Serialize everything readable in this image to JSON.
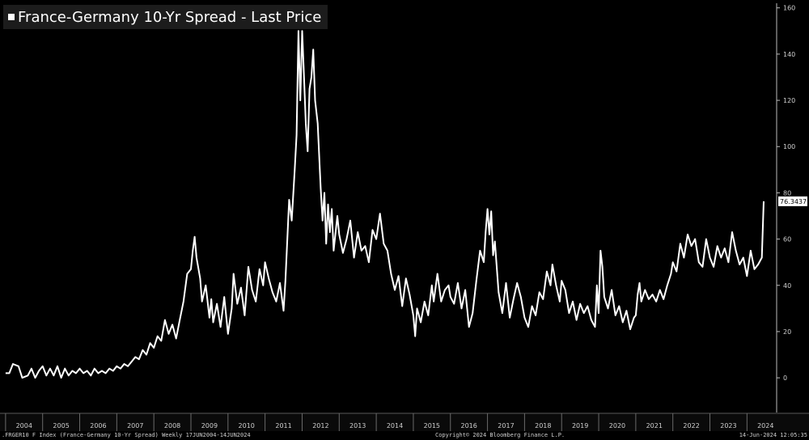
{
  "chart_data": {
    "type": "line",
    "title": "France-Germany 10-Yr Spread - Last Price",
    "series": [
      {
        "values": [
          [
            2004.0,
            2
          ],
          [
            2004.1,
            2
          ],
          [
            2004.2,
            6
          ],
          [
            2004.35,
            5
          ],
          [
            2004.45,
            0
          ],
          [
            2004.6,
            1
          ],
          [
            2004.7,
            4
          ],
          [
            2004.8,
            0
          ],
          [
            2004.9,
            3
          ],
          [
            2005.0,
            5
          ],
          [
            2005.1,
            1
          ],
          [
            2005.2,
            4
          ],
          [
            2005.3,
            1
          ],
          [
            2005.4,
            5
          ],
          [
            2005.5,
            0
          ],
          [
            2005.6,
            4
          ],
          [
            2005.7,
            1
          ],
          [
            2005.8,
            3
          ],
          [
            2005.9,
            2
          ],
          [
            2006.0,
            4
          ],
          [
            2006.1,
            2
          ],
          [
            2006.2,
            3
          ],
          [
            2006.3,
            1
          ],
          [
            2006.4,
            4
          ],
          [
            2006.5,
            2
          ],
          [
            2006.6,
            3
          ],
          [
            2006.7,
            2
          ],
          [
            2006.8,
            4
          ],
          [
            2006.9,
            3
          ],
          [
            2007.0,
            5
          ],
          [
            2007.1,
            4
          ],
          [
            2007.2,
            6
          ],
          [
            2007.3,
            5
          ],
          [
            2007.4,
            7
          ],
          [
            2007.5,
            9
          ],
          [
            2007.6,
            8
          ],
          [
            2007.7,
            12
          ],
          [
            2007.8,
            10
          ],
          [
            2007.9,
            15
          ],
          [
            2008.0,
            13
          ],
          [
            2008.1,
            18
          ],
          [
            2008.2,
            16
          ],
          [
            2008.3,
            25
          ],
          [
            2008.4,
            19
          ],
          [
            2008.5,
            23
          ],
          [
            2008.6,
            17
          ],
          [
            2008.7,
            25
          ],
          [
            2008.8,
            33
          ],
          [
            2008.9,
            45
          ],
          [
            2009.0,
            47
          ],
          [
            2009.05,
            55
          ],
          [
            2009.1,
            61
          ],
          [
            2009.15,
            52
          ],
          [
            2009.25,
            43
          ],
          [
            2009.3,
            33
          ],
          [
            2009.4,
            40
          ],
          [
            2009.5,
            26
          ],
          [
            2009.55,
            34
          ],
          [
            2009.6,
            24
          ],
          [
            2009.7,
            32
          ],
          [
            2009.8,
            22
          ],
          [
            2009.9,
            35
          ],
          [
            2010.0,
            19
          ],
          [
            2010.1,
            30
          ],
          [
            2010.15,
            45
          ],
          [
            2010.25,
            32
          ],
          [
            2010.35,
            39
          ],
          [
            2010.45,
            27
          ],
          [
            2010.55,
            48
          ],
          [
            2010.65,
            38
          ],
          [
            2010.75,
            33
          ],
          [
            2010.85,
            47
          ],
          [
            2010.95,
            40
          ],
          [
            2011.0,
            50
          ],
          [
            2011.1,
            43
          ],
          [
            2011.2,
            37
          ],
          [
            2011.3,
            33
          ],
          [
            2011.4,
            41
          ],
          [
            2011.5,
            29
          ],
          [
            2011.55,
            42
          ],
          [
            2011.65,
            77
          ],
          [
            2011.72,
            68
          ],
          [
            2011.8,
            90
          ],
          [
            2011.85,
            105
          ],
          [
            2011.9,
            150
          ],
          [
            2011.95,
            120
          ],
          [
            2012.0,
            150
          ],
          [
            2012.05,
            130
          ],
          [
            2012.1,
            110
          ],
          [
            2012.15,
            98
          ],
          [
            2012.2,
            125
          ],
          [
            2012.25,
            130
          ],
          [
            2012.3,
            142
          ],
          [
            2012.35,
            120
          ],
          [
            2012.42,
            110
          ],
          [
            2012.5,
            82
          ],
          [
            2012.55,
            68
          ],
          [
            2012.6,
            80
          ],
          [
            2012.65,
            58
          ],
          [
            2012.7,
            75
          ],
          [
            2012.75,
            63
          ],
          [
            2012.8,
            73
          ],
          [
            2012.85,
            55
          ],
          [
            2012.95,
            70
          ],
          [
            2013.0,
            62
          ],
          [
            2013.1,
            54
          ],
          [
            2013.2,
            60
          ],
          [
            2013.3,
            68
          ],
          [
            2013.4,
            52
          ],
          [
            2013.5,
            63
          ],
          [
            2013.6,
            55
          ],
          [
            2013.7,
            57
          ],
          [
            2013.8,
            50
          ],
          [
            2013.9,
            64
          ],
          [
            2014.0,
            60
          ],
          [
            2014.1,
            71
          ],
          [
            2014.2,
            58
          ],
          [
            2014.3,
            55
          ],
          [
            2014.4,
            45
          ],
          [
            2014.5,
            38
          ],
          [
            2014.6,
            44
          ],
          [
            2014.7,
            31
          ],
          [
            2014.8,
            43
          ],
          [
            2014.9,
            36
          ],
          [
            2015.0,
            27
          ],
          [
            2015.05,
            18
          ],
          [
            2015.1,
            30
          ],
          [
            2015.2,
            24
          ],
          [
            2015.3,
            33
          ],
          [
            2015.4,
            27
          ],
          [
            2015.5,
            40
          ],
          [
            2015.55,
            33
          ],
          [
            2015.65,
            45
          ],
          [
            2015.75,
            33
          ],
          [
            2015.85,
            38
          ],
          [
            2015.95,
            40
          ],
          [
            2016.0,
            35
          ],
          [
            2016.1,
            32
          ],
          [
            2016.2,
            41
          ],
          [
            2016.3,
            30
          ],
          [
            2016.4,
            38
          ],
          [
            2016.5,
            22
          ],
          [
            2016.6,
            28
          ],
          [
            2016.7,
            42
          ],
          [
            2016.8,
            55
          ],
          [
            2016.9,
            50
          ],
          [
            2016.95,
            63
          ],
          [
            2017.0,
            73
          ],
          [
            2017.05,
            62
          ],
          [
            2017.1,
            72
          ],
          [
            2017.15,
            53
          ],
          [
            2017.2,
            59
          ],
          [
            2017.3,
            37
          ],
          [
            2017.4,
            28
          ],
          [
            2017.5,
            41
          ],
          [
            2017.6,
            26
          ],
          [
            2017.7,
            34
          ],
          [
            2017.8,
            41
          ],
          [
            2017.9,
            35
          ],
          [
            2018.0,
            26
          ],
          [
            2018.1,
            22
          ],
          [
            2018.2,
            31
          ],
          [
            2018.3,
            27
          ],
          [
            2018.4,
            37
          ],
          [
            2018.5,
            34
          ],
          [
            2018.6,
            46
          ],
          [
            2018.7,
            40
          ],
          [
            2018.75,
            49
          ],
          [
            2018.85,
            40
          ],
          [
            2018.95,
            33
          ],
          [
            2019.0,
            42
          ],
          [
            2019.1,
            38
          ],
          [
            2019.2,
            28
          ],
          [
            2019.3,
            33
          ],
          [
            2019.4,
            25
          ],
          [
            2019.5,
            32
          ],
          [
            2019.6,
            28
          ],
          [
            2019.7,
            31
          ],
          [
            2019.8,
            25
          ],
          [
            2019.9,
            22
          ],
          [
            2019.95,
            40
          ],
          [
            2020.0,
            28
          ],
          [
            2020.05,
            55
          ],
          [
            2020.1,
            48
          ],
          [
            2020.15,
            35
          ],
          [
            2020.25,
            30
          ],
          [
            2020.35,
            38
          ],
          [
            2020.45,
            27
          ],
          [
            2020.55,
            31
          ],
          [
            2020.65,
            24
          ],
          [
            2020.75,
            29
          ],
          [
            2020.85,
            21
          ],
          [
            2020.95,
            26
          ],
          [
            2021.0,
            27
          ],
          [
            2021.05,
            36
          ],
          [
            2021.1,
            41
          ],
          [
            2021.15,
            33
          ],
          [
            2021.25,
            38
          ],
          [
            2021.35,
            34
          ],
          [
            2021.45,
            36
          ],
          [
            2021.55,
            33
          ],
          [
            2021.65,
            38
          ],
          [
            2021.75,
            34
          ],
          [
            2021.85,
            40
          ],
          [
            2021.95,
            45
          ],
          [
            2022.0,
            50
          ],
          [
            2022.1,
            46
          ],
          [
            2022.2,
            58
          ],
          [
            2022.3,
            52
          ],
          [
            2022.4,
            62
          ],
          [
            2022.5,
            57
          ],
          [
            2022.6,
            60
          ],
          [
            2022.7,
            50
          ],
          [
            2022.8,
            48
          ],
          [
            2022.9,
            60
          ],
          [
            2023.0,
            52
          ],
          [
            2023.1,
            48
          ],
          [
            2023.2,
            57
          ],
          [
            2023.3,
            52
          ],
          [
            2023.4,
            56
          ],
          [
            2023.5,
            50
          ],
          [
            2023.6,
            63
          ],
          [
            2023.7,
            55
          ],
          [
            2023.8,
            49
          ],
          [
            2023.9,
            52
          ],
          [
            2024.0,
            44
          ],
          [
            2024.1,
            55
          ],
          [
            2024.2,
            47
          ],
          [
            2024.3,
            49
          ],
          [
            2024.4,
            52
          ],
          [
            2024.45,
            76.3437
          ]
        ]
      }
    ],
    "y_ticks": [
      0,
      20,
      40,
      60,
      80,
      100,
      120,
      140,
      160
    ],
    "ylim": [
      -15,
      162
    ],
    "x_ticks": [
      "2004",
      "2005",
      "2006",
      "2007",
      "2008",
      "2009",
      "2010",
      "2011",
      "2012",
      "2013",
      "2014",
      "2015",
      "2016",
      "2017",
      "2018",
      "2019",
      "2020",
      "2021",
      "2022",
      "2023",
      "2024"
    ],
    "xlim": [
      2003.85,
      2024.8
    ],
    "last_value_label": "76.3437",
    "grid": false,
    "colors": {
      "background": "#000000",
      "line": "#ffffff",
      "label_box": "#ffffff",
      "label_text": "#000000"
    }
  },
  "footer": {
    "index_info": ".FRGER10 F Index (France-Germany 10-Yr Spread)  Weekly 17JUN2004-14JUN2024",
    "copyright": "Copyright© 2024 Bloomberg Finance L.P.",
    "timestamp": "14-Jun-2024 12:05:35"
  }
}
